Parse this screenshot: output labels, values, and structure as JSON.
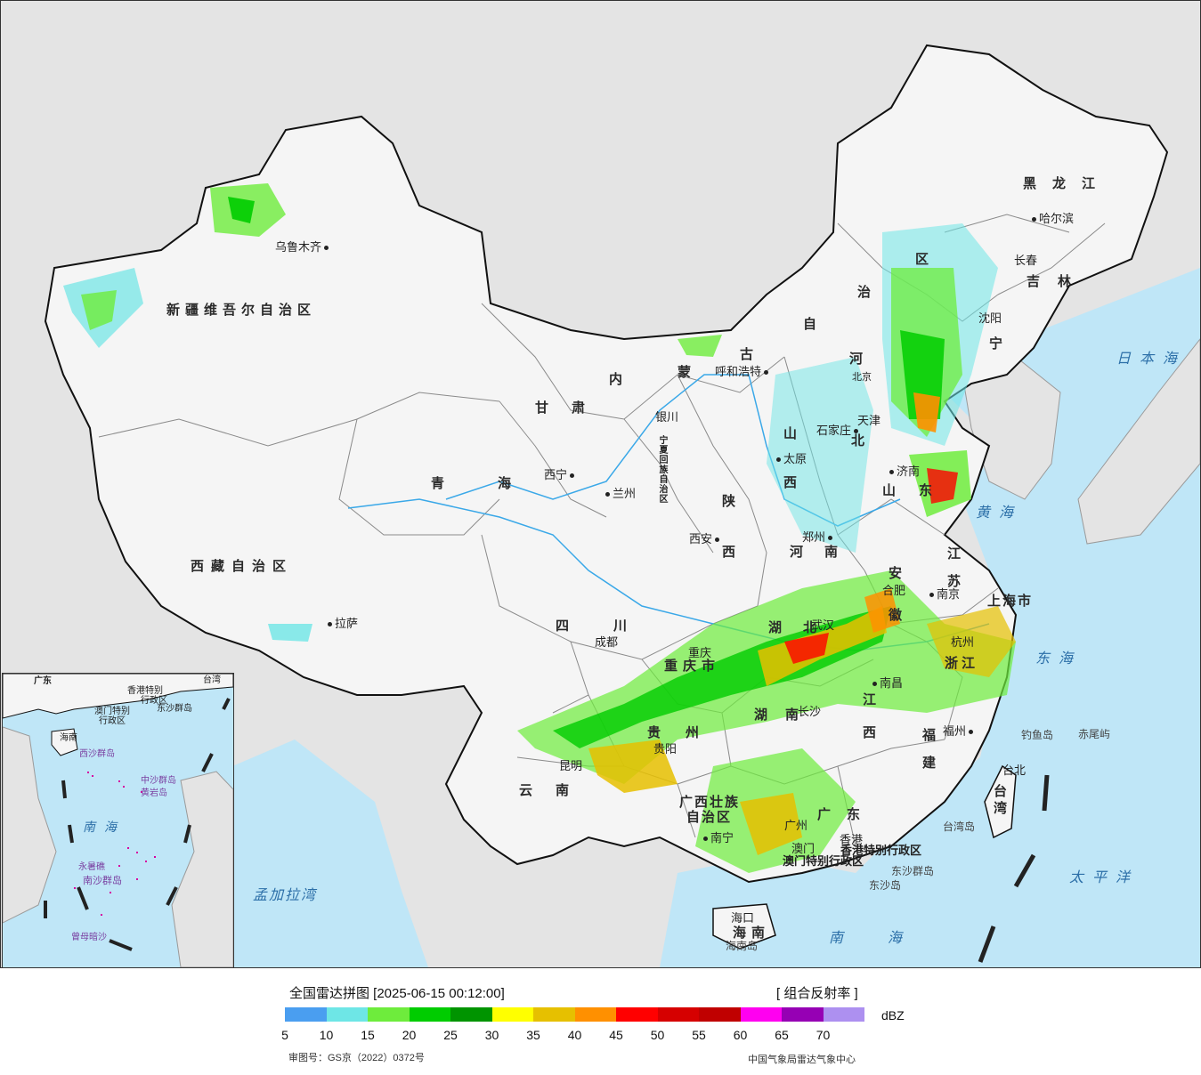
{
  "map": {
    "seas": {
      "japan_sea": "日本海",
      "yellow_sea": "黄海",
      "east_sea": "东海",
      "pacific": "太平洋",
      "south_sea": "南海",
      "bengal": "孟加拉湾",
      "inset_south_sea": "南海"
    },
    "provinces": {
      "xinjiang": "新疆维吾尔自治区",
      "xizang": "西藏自治区",
      "qinghai": "青海",
      "gansu": "甘肃",
      "neimenggu_1": "内",
      "neimenggu_2": "蒙",
      "neimenggu_3": "古",
      "neimenggu_4": "自",
      "neimenggu_5": "治",
      "neimenggu_6": "区",
      "heilongjiang": "黑龙江",
      "jilin": "吉林",
      "liaoning": "宁",
      "hebei_1": "河",
      "hebei_2": "北",
      "shanxi": "山西",
      "shaanxi_1": "陕",
      "shaanxi_2": "西",
      "ningxia": "宁夏回族自治区",
      "shandong": "山东",
      "henan": "河南",
      "jiangsu": "江苏",
      "anhui": "安徽",
      "hubei": "湖北",
      "sichuan": "四川",
      "chongqing": "重庆市",
      "guizhou": "贵州",
      "yunnan": "云南",
      "hunan": "湖南",
      "jiangxi": "江西",
      "zhejiang": "浙江",
      "fujian": "福建",
      "guangxi_1": "广西壮族",
      "guangxi_2": "自治区",
      "guangdong": "广东",
      "hainan": "海南",
      "taiwan": "台湾",
      "shanghai": "上海市",
      "hongkong": "香港特别行政区",
      "macau": "澳门特别行政区"
    },
    "cities": {
      "urumqi": "乌鲁木齐",
      "lhasa": "拉萨",
      "xining": "西宁",
      "lanzhou": "兰州",
      "yinchuan": "银川",
      "hohhot": "呼和浩特",
      "beijing": "北京",
      "tianjin": "天津",
      "shijiazhuang": "石家庄",
      "taiyuan": "太原",
      "jinan": "济南",
      "zhengzhou": "郑州",
      "xian": "西安",
      "chengdu": "成都",
      "chongqing": "重庆",
      "guiyang": "贵阳",
      "kunming": "昆明",
      "nanning": "南宁",
      "guangzhou": "广州",
      "hongkong": "香港",
      "macau": "澳门",
      "haikou": "海口",
      "changsha": "长沙",
      "wuhan": "武汉",
      "nanchang": "南昌",
      "hefei": "合肥",
      "nanjing": "南京",
      "hangzhou": "杭州",
      "fuzhou": "福州",
      "taibei": "台北",
      "harbin": "哈尔滨",
      "changchun": "长春",
      "shenyang": "沈阳"
    },
    "islands": {
      "diaoyu": "钓鱼岛",
      "chiwei": "赤尾屿",
      "taiwan_island": "台湾岛",
      "dongsha_islands": "东沙群岛",
      "dongsha_island": "东沙岛",
      "hainan_island": "海南岛"
    }
  },
  "inset": {
    "labels": {
      "guangdong": "广东",
      "hongkong_1": "香港特别",
      "hongkong_2": "行政区",
      "macau_1": "澳门特别",
      "macau_2": "行政区",
      "taiwan": "台湾",
      "dongsha": "东沙群岛",
      "hainan": "海南",
      "xisha": "西沙群岛",
      "zhongsha": "中沙群岛",
      "huangyan": "黄岩岛",
      "yongshu": "永暑礁",
      "nansha": "南沙群岛",
      "zengmu": "曾母暗沙"
    }
  },
  "legend": {
    "title": "全国雷达拼图 [2025-06-15 00:12:00]",
    "product": "[ 组合反射率 ]",
    "unit": "dBZ",
    "ticks": [
      "5",
      "10",
      "15",
      "20",
      "25",
      "30",
      "35",
      "40",
      "45",
      "50",
      "55",
      "60",
      "65",
      "70"
    ],
    "colors": [
      "#4a9ef0",
      "#6ee6e6",
      "#6eec3c",
      "#00cc00",
      "#009400",
      "#ffff00",
      "#e6c000",
      "#ff9000",
      "#ff0000",
      "#d60000",
      "#c00000",
      "#ff00f0",
      "#9600b4",
      "#ad90f0"
    ],
    "approval": "审图号：GS京（2022）0372号",
    "source": "中国气象局雷达气象中心"
  }
}
